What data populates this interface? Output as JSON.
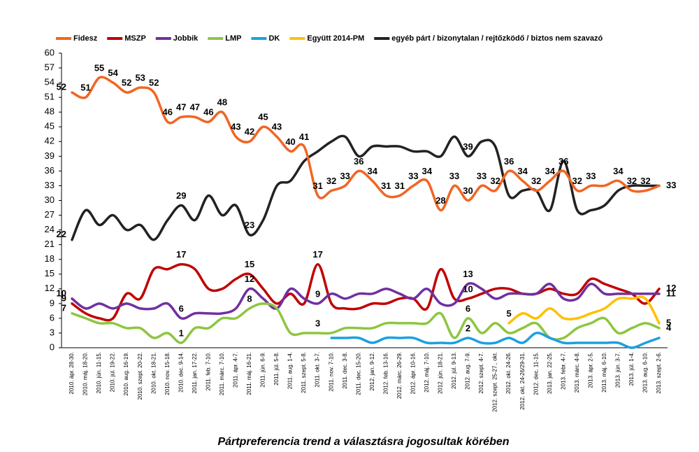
{
  "chart_data": {
    "type": "line",
    "title": "Pártpreferencia trend a választásra jogosultak körében",
    "categories": [
      "2010. ápr. 28-30.",
      "2010. máj. 18-20.",
      "2010. jún. 11-15.",
      "2010. júl. 19-22.",
      "2010. aug. 16-19.",
      "2010. szept. 20-22.",
      "2010. okt. 18-21.",
      "2010. nov. 15-18.",
      "2010. dec. 9-14.",
      "2011. jan. 17-22.",
      "2011. feb. 7-10.",
      "2011. márc. 7-10.",
      "2011. ápr. 4-7.",
      "2011. máj. 16-21.",
      "2011. jún. 6-9.",
      "2011. júl. 5-8.",
      "2011. aug. 1-4.",
      "2011. szept. 5-8.",
      "2011. okt. 3-7.",
      "2011. nov. 7-10.",
      "2011. dec. 3-8.",
      "2011. dec. 15-20.",
      "2012. jan. 9-12.",
      "2012. feb. 13-16.",
      "2012. márc. 26-29.",
      "2012. ápr. 10-16.",
      "2012. máj. 7-10.",
      "2012. jún. 18-21.",
      "2012. júl. 9-13.",
      "2012. aug. 7-9.",
      "2012. szept. 4-7.",
      "2012. szept. 25-27., okt.",
      "2012. okt. 24-26.",
      "2012. okt. 24-26/29-31.",
      "2012. dec. 11-15.",
      "2013. jan. 22-25.",
      "2013. febr. 4-7.",
      "2013. márc. 4-8.",
      "2013. ápr. 2-5.",
      "2013. máj. 6-10.",
      "2013. jún. 3-7.",
      "2013. júl. 1-4.",
      "2013. aug. 6-10.",
      "2013. szept. 2-6."
    ],
    "ylim": [
      0,
      60
    ],
    "yticks": [
      0,
      3,
      6,
      9,
      12,
      15,
      18,
      21,
      24,
      27,
      30,
      33,
      36,
      39,
      42,
      45,
      48,
      51,
      54,
      57,
      60
    ],
    "series": [
      {
        "name": "Fidesz",
        "color": "#f26522",
        "values": [
          52,
          51,
          55,
          54,
          52,
          53,
          52,
          46,
          47,
          47,
          46,
          48,
          43,
          42,
          45,
          43,
          40,
          41,
          31,
          32,
          33,
          36,
          34,
          31,
          31,
          33,
          34,
          28,
          33,
          30,
          33,
          32,
          36,
          34,
          32,
          34,
          36,
          32,
          33,
          33,
          34,
          32,
          32,
          33
        ],
        "value_labels": [
          "52",
          "51",
          "55",
          "54",
          "52",
          "53",
          "52",
          "46",
          "47",
          "47",
          "46",
          "48",
          "43",
          "42",
          "45",
          "43",
          "40",
          "41",
          "31",
          "32",
          "33",
          "36",
          "34",
          "31",
          "31",
          "33",
          "34",
          "28",
          "33",
          "30",
          "33",
          "32",
          "36",
          "34",
          "32",
          "34",
          "36",
          "32",
          "33",
          null,
          "34",
          "32",
          "32",
          "33"
        ]
      },
      {
        "name": "MSZP",
        "color": "#c00000",
        "values": [
          9,
          7,
          6,
          6,
          11,
          10,
          16,
          16,
          17,
          16,
          12,
          12,
          14,
          15,
          12,
          9,
          11,
          9,
          17,
          9,
          8,
          8,
          9,
          9,
          10,
          10,
          8,
          16,
          10,
          10,
          11,
          12,
          12,
          11,
          11,
          12,
          11,
          11,
          14,
          13,
          12,
          11,
          9,
          12
        ],
        "value_labels": [
          "9",
          null,
          null,
          null,
          null,
          null,
          null,
          null,
          "17",
          null,
          null,
          null,
          null,
          "15",
          null,
          null,
          null,
          null,
          "17",
          null,
          null,
          null,
          null,
          null,
          null,
          null,
          null,
          null,
          null,
          "10",
          null,
          null,
          null,
          null,
          null,
          null,
          null,
          null,
          null,
          null,
          null,
          null,
          null,
          "12"
        ]
      },
      {
        "name": "Jobbik",
        "color": "#7030a0",
        "values": [
          10,
          8,
          9,
          8,
          9,
          8,
          8,
          9,
          6,
          7,
          7,
          7,
          8,
          12,
          10,
          8,
          12,
          10,
          9,
          11,
          10,
          11,
          11,
          12,
          11,
          10,
          12,
          9,
          9,
          13,
          12,
          10,
          11,
          11,
          11,
          13,
          10,
          10,
          13,
          11,
          11,
          11,
          11,
          11
        ],
        "value_labels": [
          "10",
          null,
          null,
          null,
          null,
          null,
          null,
          null,
          "6",
          null,
          null,
          null,
          null,
          "12",
          null,
          null,
          null,
          null,
          "9",
          null,
          null,
          null,
          null,
          null,
          null,
          null,
          null,
          null,
          null,
          "13",
          null,
          null,
          null,
          null,
          null,
          null,
          null,
          null,
          null,
          null,
          null,
          null,
          null,
          "11"
        ]
      },
      {
        "name": "LMP",
        "color": "#8dc63f",
        "values": [
          7,
          6,
          5,
          5,
          4,
          4,
          2,
          3,
          1,
          4,
          4,
          6,
          6,
          8,
          9,
          8,
          3,
          3,
          3,
          3,
          4,
          4,
          4,
          5,
          5,
          5,
          5,
          7,
          2,
          6,
          3,
          5,
          3,
          4,
          5,
          2,
          2,
          4,
          5,
          6,
          3,
          4,
          5,
          4
        ],
        "value_labels": [
          "7",
          null,
          null,
          null,
          null,
          null,
          null,
          null,
          "1",
          null,
          null,
          null,
          null,
          "8",
          null,
          null,
          null,
          null,
          "3",
          null,
          null,
          null,
          null,
          null,
          null,
          null,
          null,
          null,
          null,
          "6",
          null,
          null,
          null,
          null,
          null,
          null,
          null,
          null,
          null,
          null,
          null,
          null,
          null,
          "4"
        ]
      },
      {
        "name": "DK",
        "color": "#1ca0e0",
        "values": [
          null,
          null,
          null,
          null,
          null,
          null,
          null,
          null,
          null,
          null,
          null,
          null,
          null,
          null,
          null,
          null,
          null,
          null,
          null,
          2,
          2,
          2,
          1,
          2,
          2,
          2,
          1,
          1,
          1,
          2,
          1,
          1,
          2,
          1,
          3,
          2,
          1,
          1,
          1,
          1,
          1,
          0,
          1,
          2
        ],
        "value_labels": [
          null,
          null,
          null,
          null,
          null,
          null,
          null,
          null,
          null,
          null,
          null,
          null,
          null,
          null,
          null,
          null,
          null,
          null,
          null,
          null,
          null,
          null,
          null,
          null,
          null,
          null,
          null,
          null,
          null,
          "2",
          null,
          null,
          null,
          null,
          null,
          null,
          null,
          null,
          null,
          null,
          null,
          null,
          null,
          null
        ]
      },
      {
        "name": "Együtt 2014-PM",
        "color": "#ffc000",
        "values": [
          null,
          null,
          null,
          null,
          null,
          null,
          null,
          null,
          null,
          null,
          null,
          null,
          null,
          null,
          null,
          null,
          null,
          null,
          null,
          null,
          null,
          null,
          null,
          null,
          null,
          null,
          null,
          null,
          null,
          null,
          null,
          null,
          5,
          7,
          6,
          8,
          6,
          6,
          7,
          8,
          10,
          10,
          10,
          5
        ],
        "value_labels": [
          null,
          null,
          null,
          null,
          null,
          null,
          null,
          null,
          null,
          null,
          null,
          null,
          null,
          null,
          null,
          null,
          null,
          null,
          null,
          null,
          null,
          null,
          null,
          null,
          null,
          null,
          null,
          null,
          null,
          null,
          null,
          null,
          "5",
          null,
          null,
          null,
          null,
          null,
          null,
          null,
          null,
          null,
          null,
          "5"
        ]
      },
      {
        "name": "egyéb párt / bizonytalan / rejtőzködő / biztos nem szavazó",
        "color": "#222222",
        "values": [
          22,
          28,
          25,
          27,
          24,
          25,
          22,
          26,
          29,
          26,
          31,
          27,
          29,
          23,
          26,
          33,
          34,
          38,
          40,
          42,
          43,
          39,
          41,
          41,
          41,
          40,
          40,
          39,
          43,
          39,
          42,
          41,
          31,
          32,
          32,
          28,
          38,
          28,
          28,
          29,
          32,
          33,
          33,
          33
        ],
        "value_labels": [
          "22",
          null,
          null,
          null,
          null,
          null,
          null,
          null,
          "29",
          null,
          null,
          null,
          null,
          "23",
          null,
          null,
          null,
          null,
          null,
          null,
          null,
          null,
          null,
          null,
          null,
          null,
          null,
          null,
          null,
          "39",
          null,
          null,
          null,
          null,
          null,
          null,
          null,
          null,
          null,
          null,
          null,
          null,
          null,
          null
        ]
      }
    ]
  }
}
